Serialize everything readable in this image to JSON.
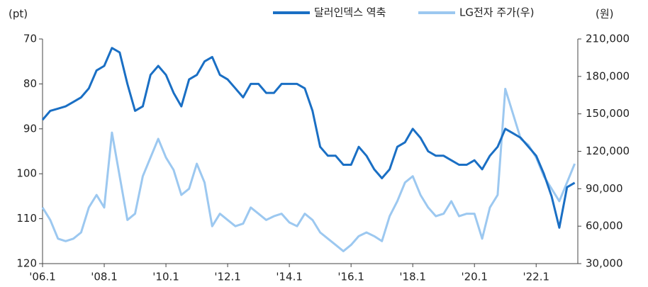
{
  "chart_data": {
    "type": "line",
    "y_label": "(pt)",
    "y2_label": "(원)",
    "x": [
      2006,
      2006.25,
      2006.5,
      2006.75,
      2007,
      2007.25,
      2007.5,
      2007.75,
      2008,
      2008.25,
      2008.5,
      2008.75,
      2009,
      2009.25,
      2009.5,
      2009.75,
      2010,
      2010.25,
      2010.5,
      2010.75,
      2011,
      2011.25,
      2011.5,
      2011.75,
      2012,
      2012.25,
      2012.5,
      2012.75,
      2013,
      2013.25,
      2013.5,
      2013.75,
      2014,
      2014.25,
      2014.5,
      2014.75,
      2015,
      2015.25,
      2015.5,
      2015.75,
      2016,
      2016.25,
      2016.5,
      2016.75,
      2017,
      2017.25,
      2017.5,
      2017.75,
      2018,
      2018.25,
      2018.5,
      2018.75,
      2019,
      2019.25,
      2019.5,
      2019.75,
      2020,
      2020.25,
      2020.5,
      2020.75,
      2021,
      2021.25,
      2021.5,
      2021.75,
      2022,
      2022.25,
      2022.5,
      2022.75,
      2023,
      2023.25
    ],
    "xlim": [
      2006,
      2023.35
    ],
    "xticks": [
      {
        "value": 2006,
        "label": "'06.1"
      },
      {
        "value": 2008,
        "label": "'08.1"
      },
      {
        "value": 2010,
        "label": "'10.1"
      },
      {
        "value": 2012,
        "label": "'12.1"
      },
      {
        "value": 2014,
        "label": "'14.1"
      },
      {
        "value": 2016,
        "label": "'16.1"
      },
      {
        "value": 2018,
        "label": "'18.1"
      },
      {
        "value": 2020,
        "label": "'20.1"
      },
      {
        "value": 2022,
        "label": "'22.1"
      }
    ],
    "ylim": [
      120,
      70
    ],
    "y_reversed": true,
    "yticks": [
      70,
      80,
      90,
      100,
      110,
      120
    ],
    "y2lim": [
      30000,
      210000
    ],
    "y2ticks": [
      {
        "value": 30000,
        "label": "30,000"
      },
      {
        "value": 60000,
        "label": "60,000"
      },
      {
        "value": 90000,
        "label": "90,000"
      },
      {
        "value": 120000,
        "label": "120,000"
      },
      {
        "value": 150000,
        "label": "150,000"
      },
      {
        "value": 180000,
        "label": "180,000"
      },
      {
        "value": 210000,
        "label": "210,000"
      }
    ],
    "series": [
      {
        "name": "달러인덱스 역축",
        "color": "#1a6fc4",
        "values": [
          88,
          86,
          85.5,
          85,
          84,
          83,
          81,
          77,
          76,
          72,
          73,
          80,
          86,
          85,
          78,
          76,
          78,
          82,
          85,
          79,
          78,
          75,
          74,
          78,
          79,
          81,
          83,
          80,
          80,
          82,
          82,
          80,
          80,
          80,
          81,
          86,
          94,
          96,
          96,
          98,
          98,
          94,
          96,
          99,
          101,
          99,
          94,
          93,
          90,
          92,
          95,
          96,
          96,
          97,
          98,
          98,
          97,
          99,
          96,
          94,
          90,
          91,
          92,
          94,
          96,
          100,
          105,
          112,
          103,
          102
        ]
      },
      {
        "name": "LG전자 주가(우)",
        "color": "#9cc8f0",
        "axis": "y2",
        "values": [
          75000,
          65000,
          50000,
          48000,
          50000,
          55000,
          75000,
          85000,
          75000,
          135000,
          100000,
          65000,
          70000,
          100000,
          115000,
          130000,
          115000,
          105000,
          85000,
          90000,
          110000,
          95000,
          60000,
          70000,
          65000,
          60000,
          62000,
          75000,
          70000,
          65000,
          68000,
          70000,
          63000,
          60000,
          70000,
          65000,
          55000,
          50000,
          45000,
          40000,
          45000,
          52000,
          55000,
          52000,
          48000,
          68000,
          80000,
          95000,
          100000,
          85000,
          75000,
          68000,
          70000,
          80000,
          68000,
          70000,
          70000,
          50000,
          75000,
          85000,
          170000,
          150000,
          130000,
          125000,
          115000,
          100000,
          90000,
          80000,
          95000,
          110000
        ]
      }
    ]
  }
}
